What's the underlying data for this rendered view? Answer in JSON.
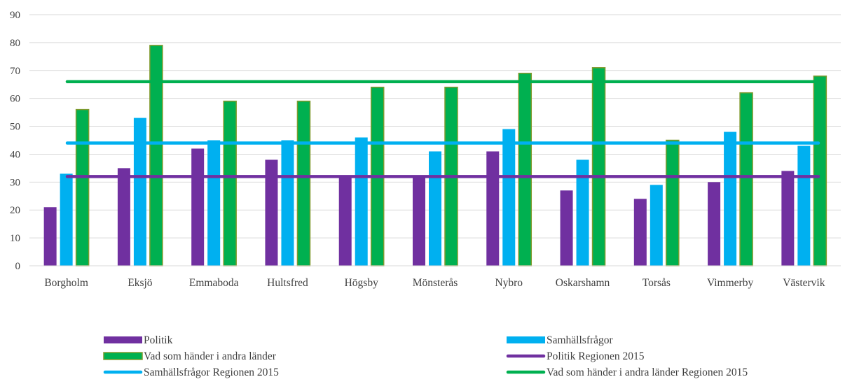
{
  "chart_data": {
    "type": "bar",
    "title": "",
    "xlabel": "",
    "ylabel": "",
    "ylim": [
      0,
      90
    ],
    "yticks": [
      0,
      10,
      20,
      30,
      40,
      50,
      60,
      70,
      80,
      90
    ],
    "grid": true,
    "legend_position": "bottom",
    "categories": [
      "Borgholm",
      "Eksjö",
      "Emmaboda",
      "Hultsfred",
      "Högsby",
      "Mönsterås",
      "Nybro",
      "Oskarshamn",
      "Torsås",
      "Vimmerby",
      "Västervik"
    ],
    "series": [
      {
        "name": "Politik",
        "color": "#7030a0",
        "values": [
          21,
          35,
          42,
          38,
          32,
          32,
          41,
          27,
          24,
          30,
          34
        ]
      },
      {
        "name": "Samhällsfrågor",
        "color": "#00b0f0",
        "values": [
          33,
          53,
          45,
          45,
          46,
          41,
          49,
          38,
          29,
          48,
          43
        ]
      },
      {
        "name": "Vad som händer i andra länder",
        "color": "#00b050",
        "border": "#7f9a2e",
        "values": [
          56,
          79,
          59,
          59,
          64,
          64,
          69,
          71,
          45,
          62,
          68
        ]
      }
    ],
    "reference_lines": [
      {
        "name": "Politik Regionen 2015",
        "color": "#7030a0",
        "value": 32
      },
      {
        "name": "Samhällsfrågor Regionen 2015",
        "color": "#00b0f0",
        "value": 44
      },
      {
        "name": "Vad som händer i andra länder Regionen 2015",
        "color": "#00b050",
        "value": 66
      }
    ]
  }
}
